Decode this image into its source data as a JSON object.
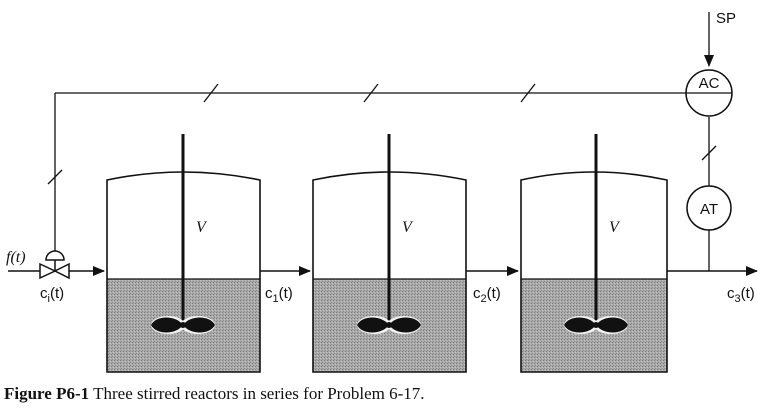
{
  "setpoint_label": "SP",
  "controller_label": "AC",
  "transmitter_label": "AT",
  "volume_label": "V",
  "inlet_flow_label": "f(t)",
  "inlet_conc_label": "c_i(t)",
  "stream_labels": [
    "c_1(t)",
    "c_2(t)",
    "c_3(t)"
  ],
  "caption": {
    "figure_id": "Figure P6-1",
    "text": "Three stirred reactors in series for Problem 6-17."
  }
}
